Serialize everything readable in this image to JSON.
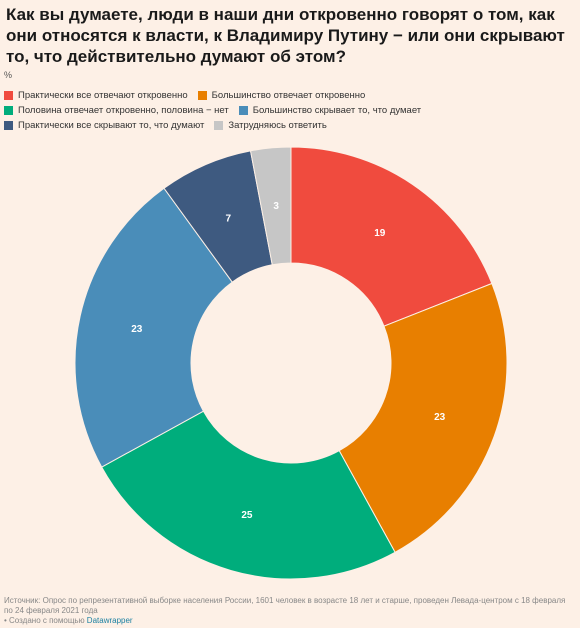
{
  "title": "Как вы думаете, люди в наши дни откровенно говорят о том, как они относятся к власти, к Владимиру Путину − или они скрывают то, что действительно думают об этом?",
  "unit": "%",
  "chart_data": {
    "type": "pie",
    "donut": true,
    "categories": [
      "Практически все отвечают откровенно",
      "Большинство отвечает откровенно",
      "Половина отвечает откровенно, половина − нет",
      "Большинство скрывает то, что думает",
      "Практически все скрывают то, что думают",
      "Затрудняюсь ответить"
    ],
    "values": [
      19,
      23,
      25,
      23,
      7,
      3
    ],
    "colors": [
      "#f04b3e",
      "#e87f00",
      "#00ad7c",
      "#4a8db9",
      "#3e5a80",
      "#c6c6c6"
    ],
    "legend_placement": "top"
  },
  "footer": {
    "source": "Источник: Опрос по репрезентативной выборке населения России, 1601 человек в возрасте 18 лет и старше, проведен Левада-центром с 18 февраля по 24 февраля 2021 года",
    "credit_prefix": "• Создано с помощью",
    "credit_link": "Datawrapper"
  }
}
